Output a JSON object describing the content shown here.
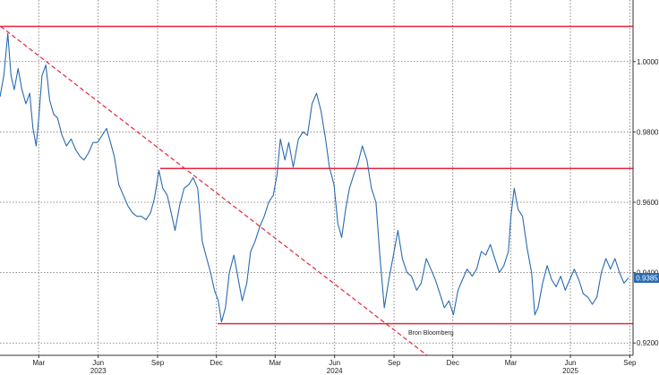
{
  "chart_data": {
    "type": "line",
    "source": "Bron Bloomberg",
    "last_value_label": "0.9385",
    "colors": {
      "series": "#2a6bb0",
      "level_lines": "#e8243c",
      "trendline": "#e8243c",
      "grid": "#6f6f6f",
      "axis": "#333333",
      "badge_bg": "#2a6bb0",
      "badge_text": "#ffffff"
    },
    "y_axis": {
      "position": "right",
      "range": [
        0.9165,
        1.0175
      ],
      "ticks": [
        {
          "value": 1.0,
          "label": "1.0000"
        },
        {
          "value": 0.98,
          "label": "0.9800"
        },
        {
          "value": 0.96,
          "label": "0.9600"
        },
        {
          "value": 0.94,
          "label": "0.9400"
        },
        {
          "value": 0.92,
          "label": "0.9200"
        }
      ]
    },
    "x_axis": {
      "range": [
        "2022-12-31",
        "2025-09-06"
      ],
      "ticks": [
        {
          "date": "2023-03-01",
          "label": "Mar"
        },
        {
          "date": "2023-06-01",
          "label": "Jun"
        },
        {
          "date": "2023-09-01",
          "label": "Sep"
        },
        {
          "date": "2023-12-01",
          "label": "Dec"
        },
        {
          "date": "2024-03-01",
          "label": "Mar"
        },
        {
          "date": "2024-06-01",
          "label": "Jun"
        },
        {
          "date": "2024-09-01",
          "label": "Sep"
        },
        {
          "date": "2024-12-01",
          "label": "Dec"
        },
        {
          "date": "2025-03-01",
          "label": "Mar"
        },
        {
          "date": "2025-06-01",
          "label": "Jun"
        },
        {
          "date": "2025-09-01",
          "label": "Sep"
        }
      ],
      "year_labels": [
        {
          "date": "2023-06-01",
          "label": "2023"
        },
        {
          "date": "2024-06-01",
          "label": "2024"
        },
        {
          "date": "2025-06-01",
          "label": "2025"
        }
      ]
    },
    "grid": true,
    "level_lines": [
      {
        "value": 1.01,
        "from": "2022-12-31",
        "to": "2025-09-06"
      },
      {
        "value": 0.9696,
        "from": "2023-09-05",
        "to": "2025-09-06"
      },
      {
        "value": 0.9255,
        "from": "2023-12-03",
        "to": "2025-09-06"
      }
    ],
    "trendline": {
      "from": {
        "date": "2023-01-01",
        "value": 1.01
      },
      "to": {
        "date": "2024-10-22",
        "value": 0.9165
      }
    },
    "series": [
      {
        "points": [
          [
            "2022-12-31",
            0.99
          ],
          [
            "2023-01-06",
            0.996
          ],
          [
            "2023-01-12",
            1.008
          ],
          [
            "2023-01-17",
            0.996
          ],
          [
            "2023-01-22",
            0.992
          ],
          [
            "2023-01-28",
            0.998
          ],
          [
            "2023-02-03",
            0.992
          ],
          [
            "2023-02-09",
            0.988
          ],
          [
            "2023-02-15",
            0.991
          ],
          [
            "2023-02-20",
            0.981
          ],
          [
            "2023-02-25",
            0.976
          ],
          [
            "2023-03-01",
            0.984
          ],
          [
            "2023-03-06",
            0.996
          ],
          [
            "2023-03-12",
            0.999
          ],
          [
            "2023-03-18",
            0.989
          ],
          [
            "2023-03-24",
            0.985
          ],
          [
            "2023-03-30",
            0.984
          ],
          [
            "2023-04-06",
            0.979
          ],
          [
            "2023-04-13",
            0.976
          ],
          [
            "2023-04-20",
            0.978
          ],
          [
            "2023-04-27",
            0.975
          ],
          [
            "2023-05-04",
            0.973
          ],
          [
            "2023-05-10",
            0.972
          ],
          [
            "2023-05-17",
            0.974
          ],
          [
            "2023-05-24",
            0.977
          ],
          [
            "2023-05-31",
            0.977
          ],
          [
            "2023-06-07",
            0.979
          ],
          [
            "2023-06-14",
            0.981
          ],
          [
            "2023-06-20",
            0.977
          ],
          [
            "2023-06-26",
            0.973
          ],
          [
            "2023-07-03",
            0.965
          ],
          [
            "2023-07-10",
            0.962
          ],
          [
            "2023-07-17",
            0.959
          ],
          [
            "2023-07-24",
            0.957
          ],
          [
            "2023-07-31",
            0.956
          ],
          [
            "2023-08-07",
            0.956
          ],
          [
            "2023-08-14",
            0.955
          ],
          [
            "2023-08-21",
            0.957
          ],
          [
            "2023-08-27",
            0.961
          ],
          [
            "2023-09-03",
            0.969
          ],
          [
            "2023-09-09",
            0.964
          ],
          [
            "2023-09-16",
            0.962
          ],
          [
            "2023-09-22",
            0.957
          ],
          [
            "2023-09-28",
            0.952
          ],
          [
            "2023-10-05",
            0.959
          ],
          [
            "2023-10-12",
            0.964
          ],
          [
            "2023-10-19",
            0.965
          ],
          [
            "2023-10-26",
            0.967
          ],
          [
            "2023-11-02",
            0.964
          ],
          [
            "2023-11-09",
            0.949
          ],
          [
            "2023-11-16",
            0.944
          ],
          [
            "2023-11-22",
            0.94
          ],
          [
            "2023-11-28",
            0.935
          ],
          [
            "2023-12-04",
            0.932
          ],
          [
            "2023-12-09",
            0.926
          ],
          [
            "2023-12-15",
            0.93
          ],
          [
            "2023-12-21",
            0.94
          ],
          [
            "2023-12-28",
            0.945
          ],
          [
            "2024-01-04",
            0.938
          ],
          [
            "2024-01-10",
            0.932
          ],
          [
            "2024-01-17",
            0.937
          ],
          [
            "2024-01-23",
            0.946
          ],
          [
            "2024-01-30",
            0.949
          ],
          [
            "2024-02-06",
            0.953
          ],
          [
            "2024-02-13",
            0.956
          ],
          [
            "2024-02-20",
            0.96
          ],
          [
            "2024-02-27",
            0.962
          ],
          [
            "2024-03-04",
            0.968
          ],
          [
            "2024-03-09",
            0.978
          ],
          [
            "2024-03-16",
            0.972
          ],
          [
            "2024-03-22",
            0.977
          ],
          [
            "2024-03-29",
            0.97
          ],
          [
            "2024-04-06",
            0.978
          ],
          [
            "2024-04-13",
            0.98
          ],
          [
            "2024-04-20",
            0.979
          ],
          [
            "2024-04-27",
            0.988
          ],
          [
            "2024-05-04",
            0.991
          ],
          [
            "2024-05-11",
            0.986
          ],
          [
            "2024-05-18",
            0.978
          ],
          [
            "2024-05-24",
            0.97
          ],
          [
            "2024-05-31",
            0.965
          ],
          [
            "2024-06-06",
            0.954
          ],
          [
            "2024-06-12",
            0.95
          ],
          [
            "2024-06-18",
            0.958
          ],
          [
            "2024-06-24",
            0.964
          ],
          [
            "2024-07-01",
            0.968
          ],
          [
            "2024-07-07",
            0.971
          ],
          [
            "2024-07-14",
            0.976
          ],
          [
            "2024-07-21",
            0.972
          ],
          [
            "2024-07-28",
            0.964
          ],
          [
            "2024-08-04",
            0.96
          ],
          [
            "2024-08-10",
            0.945
          ],
          [
            "2024-08-17",
            0.93
          ],
          [
            "2024-08-24",
            0.938
          ],
          [
            "2024-08-31",
            0.945
          ],
          [
            "2024-09-07",
            0.952
          ],
          [
            "2024-09-14",
            0.944
          ],
          [
            "2024-09-21",
            0.94
          ],
          [
            "2024-09-28",
            0.939
          ],
          [
            "2024-10-06",
            0.935
          ],
          [
            "2024-10-13",
            0.937
          ],
          [
            "2024-10-21",
            0.944
          ],
          [
            "2024-10-28",
            0.941
          ],
          [
            "2024-11-04",
            0.938
          ],
          [
            "2024-11-11",
            0.934
          ],
          [
            "2024-11-18",
            0.93
          ],
          [
            "2024-11-25",
            0.932
          ],
          [
            "2024-12-02",
            0.928
          ],
          [
            "2024-12-09",
            0.935
          ],
          [
            "2024-12-16",
            0.938
          ],
          [
            "2024-12-23",
            0.941
          ],
          [
            "2024-12-31",
            0.939
          ],
          [
            "2025-01-07",
            0.941
          ],
          [
            "2025-01-14",
            0.946
          ],
          [
            "2025-01-21",
            0.945
          ],
          [
            "2025-01-28",
            0.948
          ],
          [
            "2025-02-04",
            0.944
          ],
          [
            "2025-02-11",
            0.94
          ],
          [
            "2025-02-18",
            0.942
          ],
          [
            "2025-02-25",
            0.946
          ],
          [
            "2025-03-01",
            0.956
          ],
          [
            "2025-03-06",
            0.964
          ],
          [
            "2025-03-12",
            0.958
          ],
          [
            "2025-03-19",
            0.956
          ],
          [
            "2025-03-26",
            0.947
          ],
          [
            "2025-04-02",
            0.94
          ],
          [
            "2025-04-07",
            0.928
          ],
          [
            "2025-04-12",
            0.93
          ],
          [
            "2025-04-19",
            0.937
          ],
          [
            "2025-04-26",
            0.942
          ],
          [
            "2025-05-03",
            0.938
          ],
          [
            "2025-05-10",
            0.936
          ],
          [
            "2025-05-17",
            0.939
          ],
          [
            "2025-05-24",
            0.935
          ],
          [
            "2025-05-31",
            0.938
          ],
          [
            "2025-06-07",
            0.941
          ],
          [
            "2025-06-14",
            0.938
          ],
          [
            "2025-06-21",
            0.934
          ],
          [
            "2025-06-28",
            0.933
          ],
          [
            "2025-07-05",
            0.931
          ],
          [
            "2025-07-12",
            0.933
          ],
          [
            "2025-07-19",
            0.94
          ],
          [
            "2025-07-26",
            0.944
          ],
          [
            "2025-08-02",
            0.941
          ],
          [
            "2025-08-09",
            0.944
          ],
          [
            "2025-08-16",
            0.94
          ],
          [
            "2025-08-23",
            0.937
          ],
          [
            "2025-08-30",
            0.9385
          ]
        ]
      }
    ]
  }
}
